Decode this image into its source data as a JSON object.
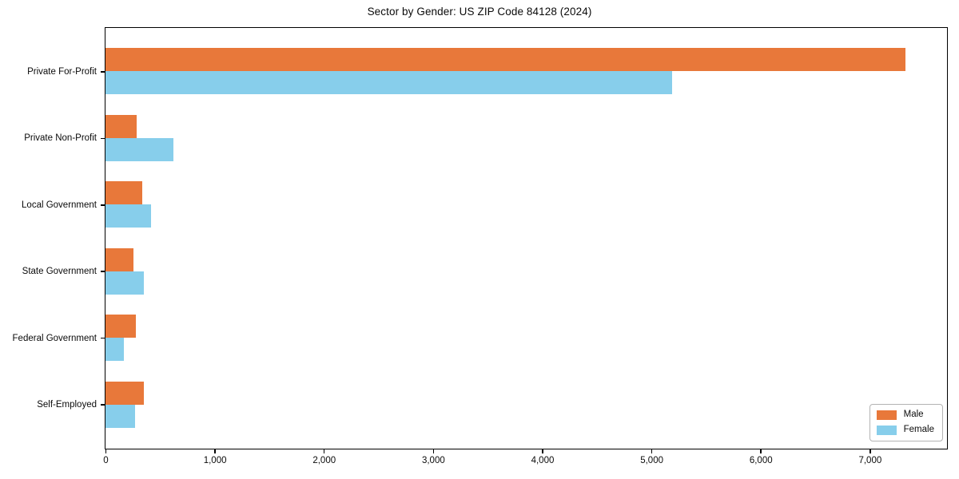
{
  "chart_data": {
    "type": "bar",
    "orientation": "horizontal",
    "title": "Sector by Gender: US ZIP Code 84128 (2024)",
    "categories": [
      "Private For-Profit",
      "Private Non-Profit",
      "Local Government",
      "State Government",
      "Federal Government",
      "Self-Employed"
    ],
    "series": [
      {
        "name": "Male",
        "color": "#e8783a",
        "values": [
          7330,
          285,
          335,
          255,
          280,
          350
        ]
      },
      {
        "name": "Female",
        "color": "#87ceeb",
        "values": [
          5190,
          620,
          415,
          350,
          165,
          270
        ]
      }
    ],
    "xlabel": "",
    "ylabel": "",
    "xlim": [
      0,
      7700
    ],
    "x_ticks": [
      0,
      1000,
      2000,
      3000,
      4000,
      5000,
      6000,
      7000
    ],
    "x_tick_labels": [
      "0",
      "1,000",
      "2,000",
      "3,000",
      "4,000",
      "5,000",
      "6,000",
      "7,000"
    ],
    "grid": false,
    "legend": {
      "position": "lower right"
    },
    "colors": {
      "spine": "#000000",
      "background": "#ffffff",
      "text": "#0a0a0a"
    }
  }
}
